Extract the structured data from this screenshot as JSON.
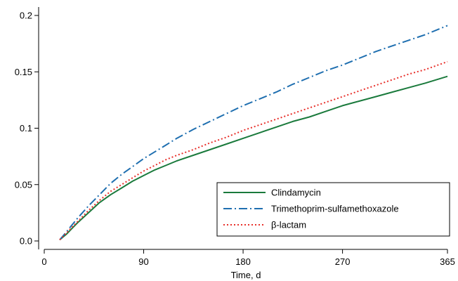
{
  "chart_data": {
    "type": "line",
    "title": "",
    "xlabel": "Time, d",
    "ylabel": "",
    "xlim": [
      0,
      370
    ],
    "ylim": [
      0,
      0.21
    ],
    "x_ticks": [
      0,
      90,
      180,
      270,
      365
    ],
    "y_ticks": [
      0.0,
      0.05,
      0.1,
      0.15,
      0.2
    ],
    "x_tick_labels": [
      "0",
      "90",
      "180",
      "270",
      "365"
    ],
    "y_tick_labels": [
      "0.0",
      "0.05",
      "0.1",
      "0.15",
      "0.2"
    ],
    "grid": false,
    "legend": {
      "placement": "bottom-right"
    },
    "series": [
      {
        "name": "Clindamycin",
        "color": "#1a7a3c",
        "style": "solid",
        "x": [
          14,
          20,
          25,
          30,
          40,
          50,
          60,
          70,
          80,
          90,
          100,
          110,
          120,
          135,
          150,
          165,
          180,
          195,
          210,
          225,
          240,
          255,
          270,
          285,
          300,
          315,
          330,
          345,
          365
        ],
        "y": [
          0.001,
          0.006,
          0.011,
          0.016,
          0.025,
          0.034,
          0.041,
          0.047,
          0.053,
          0.058,
          0.063,
          0.067,
          0.071,
          0.076,
          0.081,
          0.086,
          0.091,
          0.096,
          0.101,
          0.106,
          0.11,
          0.115,
          0.12,
          0.124,
          0.128,
          0.132,
          0.136,
          0.14,
          0.146
        ]
      },
      {
        "name": "Trimethoprim-sulfamethoxazole",
        "color": "#1f6fb0",
        "style": "dashdot",
        "x": [
          14,
          20,
          25,
          30,
          40,
          50,
          60,
          70,
          80,
          90,
          100,
          110,
          120,
          135,
          150,
          165,
          180,
          195,
          210,
          225,
          240,
          255,
          270,
          285,
          300,
          315,
          330,
          345,
          365
        ],
        "y": [
          0.001,
          0.008,
          0.014,
          0.02,
          0.031,
          0.041,
          0.051,
          0.059,
          0.066,
          0.073,
          0.079,
          0.085,
          0.091,
          0.099,
          0.106,
          0.113,
          0.12,
          0.126,
          0.132,
          0.139,
          0.145,
          0.151,
          0.156,
          0.162,
          0.168,
          0.173,
          0.178,
          0.183,
          0.191
        ]
      },
      {
        "name": "β-lactam",
        "color": "#e8302b",
        "style": "dotted",
        "x": [
          14,
          20,
          25,
          30,
          40,
          50,
          60,
          70,
          80,
          90,
          100,
          110,
          120,
          135,
          150,
          165,
          180,
          195,
          210,
          225,
          240,
          255,
          270,
          285,
          300,
          315,
          330,
          345,
          365
        ],
        "y": [
          0.001,
          0.007,
          0.012,
          0.017,
          0.027,
          0.036,
          0.044,
          0.05,
          0.056,
          0.062,
          0.067,
          0.072,
          0.076,
          0.081,
          0.087,
          0.092,
          0.098,
          0.103,
          0.108,
          0.113,
          0.118,
          0.123,
          0.128,
          0.133,
          0.138,
          0.143,
          0.148,
          0.152,
          0.159
        ]
      }
    ]
  }
}
